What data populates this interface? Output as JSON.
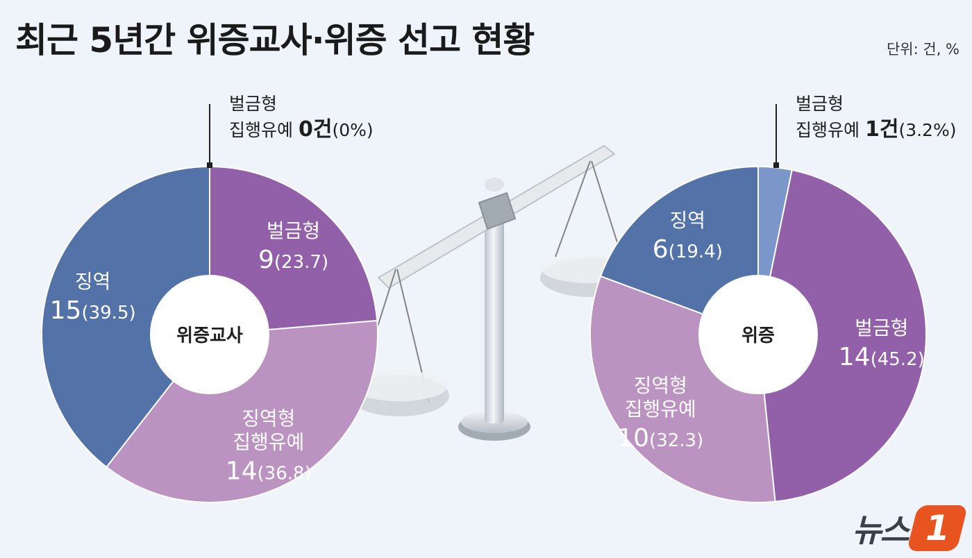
{
  "header": {
    "title": "최근 5년간 위증교사·위증 선고 현황",
    "unit": "단위: 건, %"
  },
  "chart_data": [
    {
      "type": "pie",
      "center_label": "위증교사",
      "slices": [
        {
          "label_lines": [
            "벌금형",
            "집행유예"
          ],
          "value": 0,
          "pct": 0,
          "color": "#7b96c8"
        },
        {
          "label_lines": [
            "벌금형"
          ],
          "value": 9,
          "pct": 23.7,
          "color": "#9160a8"
        },
        {
          "label_lines": [
            "징역형",
            "집행유예"
          ],
          "value": 14,
          "pct": 36.8,
          "color": "#bb93c0"
        },
        {
          "label_lines": [
            "징역"
          ],
          "value": 15,
          "pct": 39.5,
          "color": "#5372a8"
        }
      ]
    },
    {
      "type": "pie",
      "center_label": "위증",
      "slices": [
        {
          "label_lines": [
            "벌금형",
            "집행유예"
          ],
          "value": 1,
          "pct": 3.2,
          "color": "#7b96c8"
        },
        {
          "label_lines": [
            "벌금형"
          ],
          "value": 14,
          "pct": 45.2,
          "color": "#9160a8"
        },
        {
          "label_lines": [
            "징역형",
            "집행유예"
          ],
          "value": 10,
          "pct": 32.3,
          "color": "#bb93c0"
        },
        {
          "label_lines": [
            "징역"
          ],
          "value": 6,
          "pct": 19.4,
          "color": "#5372a8"
        }
      ]
    }
  ],
  "count_unit": "건",
  "logo": {
    "text": "뉴스",
    "badge": "1"
  }
}
